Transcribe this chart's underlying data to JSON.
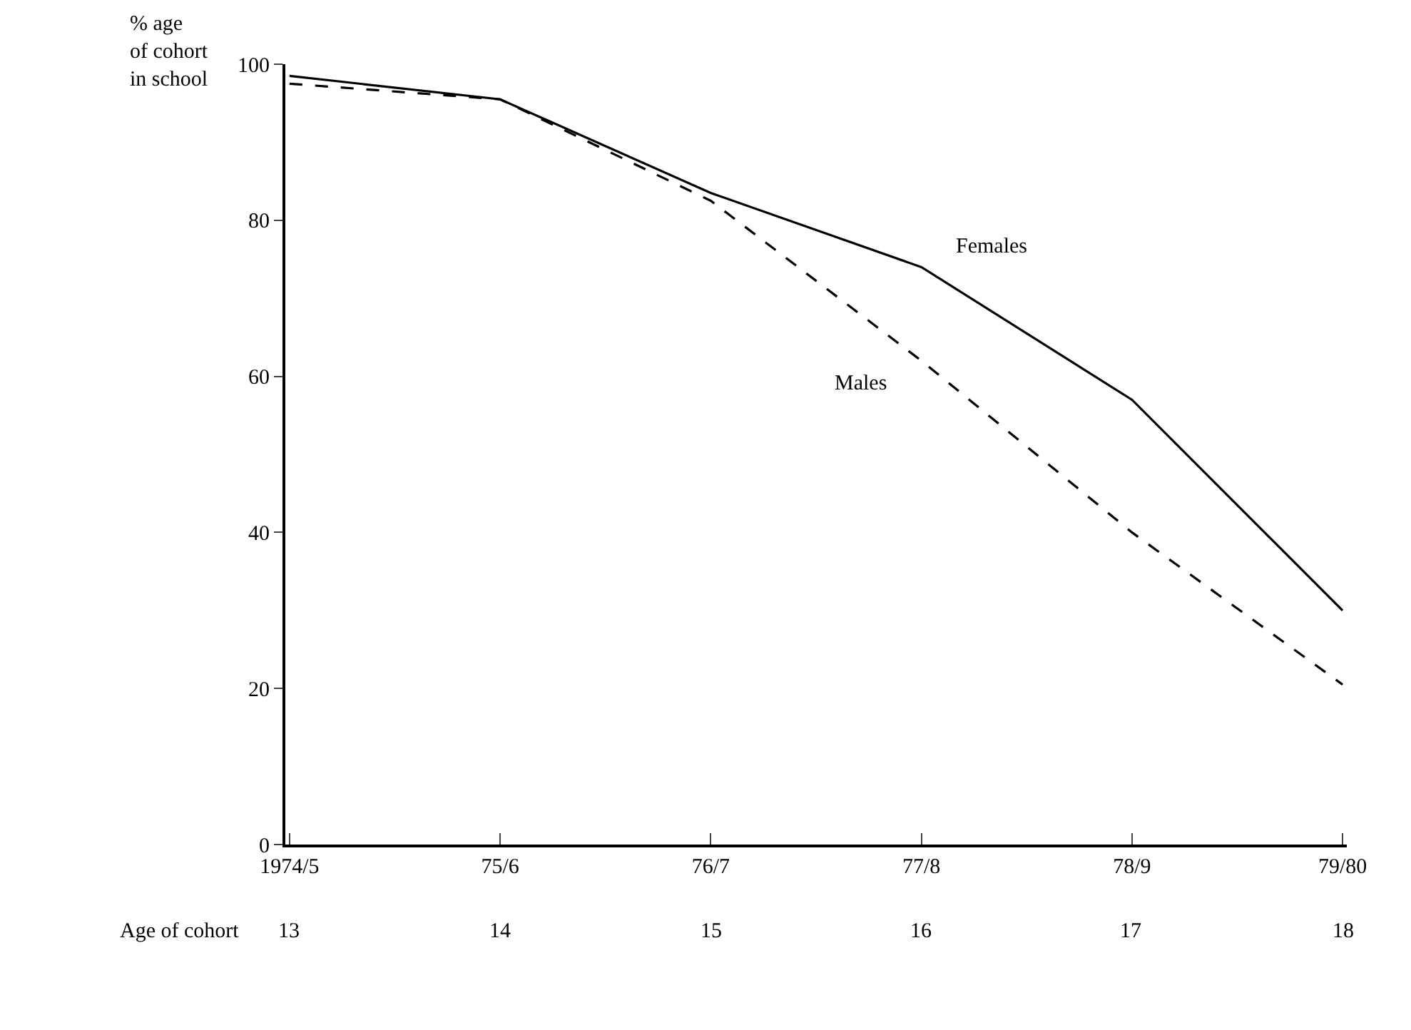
{
  "chart_data": {
    "type": "line",
    "ylabel": "% age\nof cohort\nin school",
    "categories": [
      "1974/5",
      "75/6",
      "76/7",
      "77/8",
      "78/9",
      "79/80"
    ],
    "series": [
      {
        "name": "Females",
        "color": "#000000",
        "line_style": "solid",
        "values": [
          98.5,
          95.5,
          83.5,
          74,
          57,
          30
        ]
      },
      {
        "name": "Males",
        "color": "#000000",
        "line_style": "dashed",
        "values": [
          97.5,
          95.5,
          82.5,
          62,
          40,
          20.5
        ]
      }
    ],
    "ylim": [
      0,
      100
    ],
    "yticks": [
      0,
      20,
      40,
      60,
      80,
      100
    ],
    "legend": false,
    "marker": "none",
    "annotations": [
      "Age of cohort",
      "13",
      "14",
      "15",
      "16",
      "17",
      "18"
    ]
  }
}
